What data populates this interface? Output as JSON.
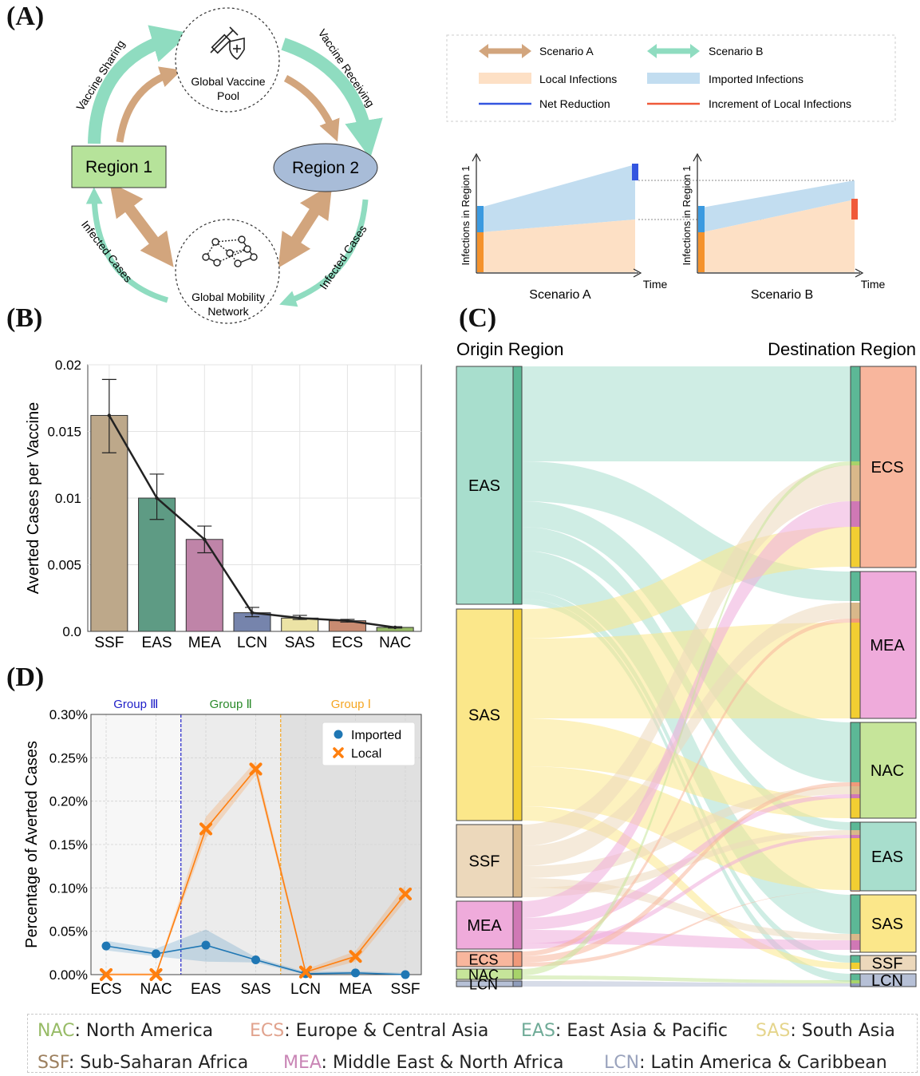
{
  "panels": {
    "a": "(A)",
    "b": "(B)",
    "c": "(C)",
    "d": "(D)"
  },
  "panel_a": {
    "region1": "Region 1",
    "region2": "Region 2",
    "vaccine_pool": [
      "Global Vaccine",
      "Pool"
    ],
    "mobility_network": [
      "Global Mobility",
      "Network"
    ],
    "vaccine_sharing": "Vaccine Sharing",
    "vaccine_receiving": "Vaccine Receiving",
    "infected_left": "Infected Cases",
    "infected_right": "Infected Cases",
    "legend": {
      "scenario_a": "Scenario A",
      "scenario_b": "Scenario B",
      "local_infections": "Local Infections",
      "imported_infections": "Imported Infections",
      "net_reduction": "Net Reduction",
      "increment_local": "Increment of Local Infections"
    },
    "mini_charts": {
      "ylabel": "Infections in Region 1",
      "xlabel": "Time",
      "title_a": "Scenario A",
      "title_b": "Scenario B"
    },
    "colors": {
      "scenario_a": "#d2a57d",
      "scenario_b": "#8fdcc0",
      "local": "#fde0c5",
      "imported": "#c2ddf0",
      "net_reduction": "#3355e0",
      "increment": "#f05a3a",
      "region1_fill": "#b6e39a",
      "region2_fill": "#a8bcd8"
    }
  },
  "panel_c": {
    "origin_title": "Origin Region",
    "destination_title": "Destination Region",
    "origins": [
      {
        "code": "EAS",
        "color": "#a8decd",
        "dark": "#5cb896"
      },
      {
        "code": "SAS",
        "color": "#fbe78a",
        "dark": "#f2ce32"
      },
      {
        "code": "SSF",
        "color": "#ecd8bb",
        "dark": "#d9b88a"
      },
      {
        "code": "MEA",
        "color": "#efabdb",
        "dark": "#d078b5"
      },
      {
        "code": "ECS",
        "color": "#f8b69d",
        "dark": "#f0997a"
      },
      {
        "code": "NAC",
        "color": "#c6e59a",
        "dark": "#a7d36a"
      },
      {
        "code": "LCN",
        "color": "#b6c0d6",
        "dark": "#8f9dbb"
      }
    ],
    "destinations": [
      {
        "code": "ECS",
        "color": "#f8b69d"
      },
      {
        "code": "MEA",
        "color": "#efabdb"
      },
      {
        "code": "NAC",
        "color": "#c6e59a"
      },
      {
        "code": "EAS",
        "color": "#a8decd"
      },
      {
        "code": "SAS",
        "color": "#fbe78a"
      },
      {
        "code": "SSF",
        "color": "#ecd8bb"
      },
      {
        "code": "LCN",
        "color": "#b6c0d6"
      }
    ]
  },
  "chart_data": [
    {
      "id": "B",
      "type": "bar",
      "categories": [
        "SSF",
        "EAS",
        "MEA",
        "LCN",
        "SAS",
        "ECS",
        "NAC"
      ],
      "values": [
        0.0162,
        0.01,
        0.0069,
        0.0014,
        0.001,
        0.0008,
        0.0003
      ],
      "error_low": [
        0.0134,
        0.0084,
        0.0059,
        0.0011,
        0.0009,
        0.0007,
        0.00025
      ],
      "error_high": [
        0.0189,
        0.0118,
        0.0079,
        0.0018,
        0.0012,
        0.0009,
        0.00035
      ],
      "colors": [
        "#bda88a",
        "#5e9b84",
        "#bf84a8",
        "#7684ac",
        "#ece3a5",
        "#c98b71",
        "#97bb66"
      ],
      "ylabel": "Averted Cases per Vaccine",
      "ylim": [
        0,
        0.02
      ],
      "yticks": [
        "0.0",
        "0.005",
        "0.01",
        "0.015",
        "0.02"
      ],
      "grid": true
    },
    {
      "id": "D",
      "type": "line",
      "categories": [
        "ECS",
        "NAC",
        "EAS",
        "SAS",
        "LCN",
        "MEA",
        "SSF"
      ],
      "series": [
        {
          "name": "Imported",
          "values": [
            0.033,
            0.024,
            0.034,
            0.017,
            0.001,
            0.002,
            0.0
          ],
          "band_low": [
            0.028,
            0.021,
            0.015,
            0.014,
            0.0,
            0.0,
            0.0
          ],
          "band_high": [
            0.039,
            0.03,
            0.052,
            0.02,
            0.003,
            0.004,
            0.002
          ],
          "color": "#1f77b4"
        },
        {
          "name": "Local",
          "values": [
            0.0,
            0.0,
            0.168,
            0.237,
            0.003,
            0.021,
            0.093
          ],
          "band_low": [
            0.0,
            0.0,
            0.157,
            0.23,
            0.0,
            0.015,
            0.085
          ],
          "band_high": [
            0.002,
            0.002,
            0.182,
            0.246,
            0.006,
            0.027,
            0.103
          ],
          "color": "#ff7f0e"
        }
      ],
      "ylabel": "Percentage of Averted Cases",
      "ylim": [
        0,
        0.3
      ],
      "yticks": [
        "0.00%",
        "0.05%",
        "0.10%",
        "0.15%",
        "0.20%",
        "0.25%",
        "0.30%"
      ],
      "groups": [
        {
          "label": "Group Ⅲ",
          "color": "#2020c8"
        },
        {
          "label": "Group Ⅱ",
          "color": "#2a8a2a"
        },
        {
          "label": "Group Ⅰ",
          "color": "#f5a623"
        }
      ],
      "legend_position": "top-right",
      "grid": true
    }
  ],
  "region_legend": [
    {
      "code": "NAC",
      "sep": ": ",
      "name": "North America",
      "color": "#97bb66"
    },
    {
      "code": "ECS",
      "sep": ": ",
      "name": "Europe & Central Asia",
      "color": "#e1a38e"
    },
    {
      "code": "EAS",
      "sep": ": ",
      "name": "East Asia & Pacific",
      "color": "#6fab97"
    },
    {
      "code": "SAS",
      "sep": ": ",
      "name": "South Asia",
      "color": "#e5d58c"
    },
    {
      "code": "SSF",
      "sep": ": ",
      "name": "Sub-Saharan Africa",
      "color": "#9c7f5e"
    },
    {
      "code": "MEA",
      "sep": ": ",
      "name": "Middle East & North Africa",
      "color": "#c985b5"
    },
    {
      "code": "LCN",
      "sep": ": ",
      "name": "Latin America & Caribbean",
      "color": "#9aa3bd"
    }
  ]
}
